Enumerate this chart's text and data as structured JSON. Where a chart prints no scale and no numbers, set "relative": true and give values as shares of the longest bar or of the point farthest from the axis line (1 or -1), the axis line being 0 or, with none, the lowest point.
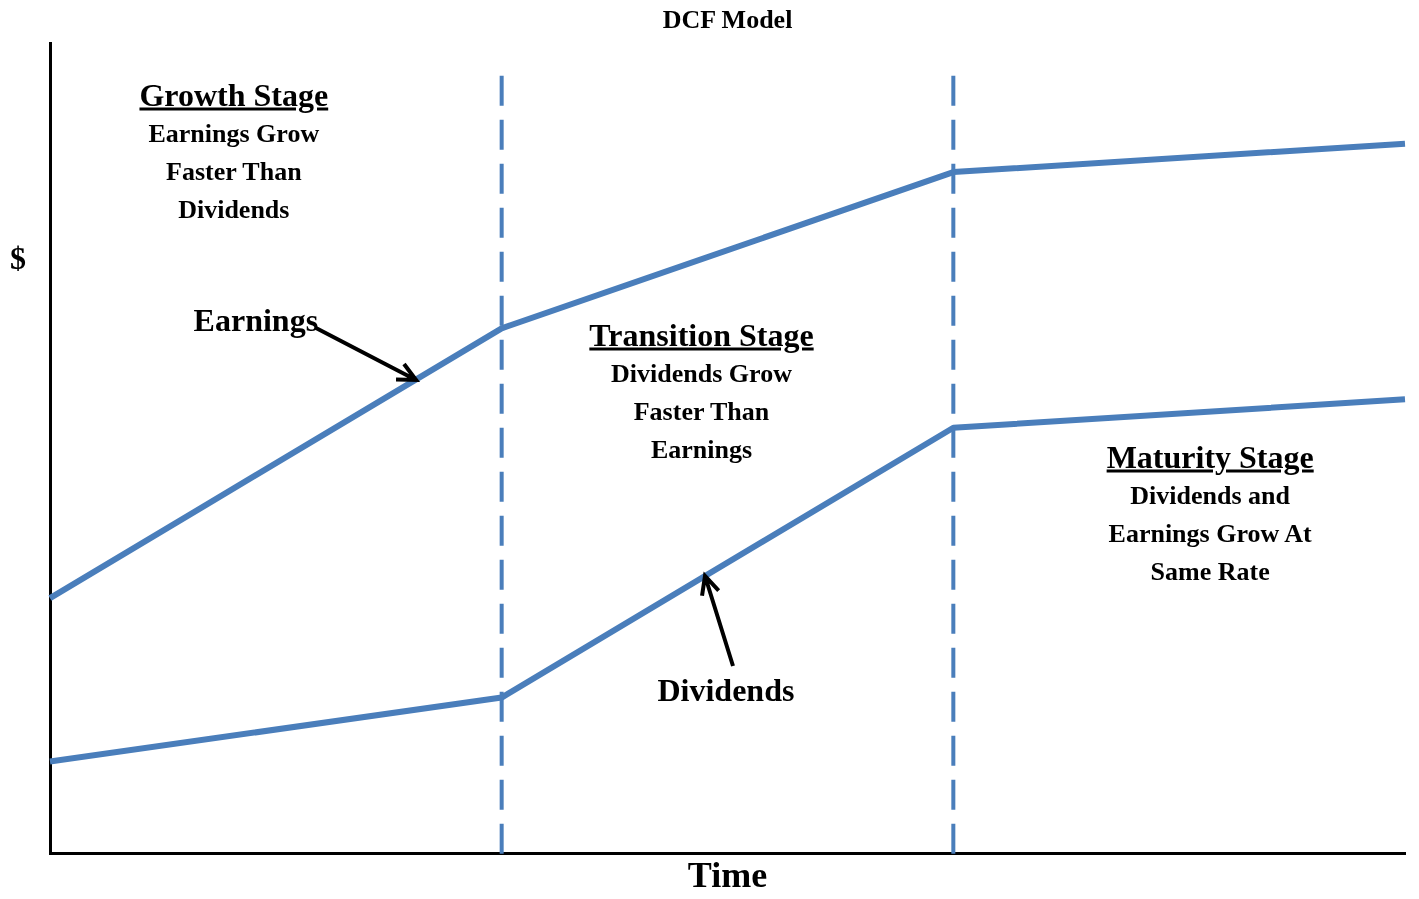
{
  "chart_data": {
    "type": "line",
    "title": "DCF Model",
    "xlabel": "Time",
    "ylabel": "$",
    "relative": true,
    "categories": [
      null,
      null,
      null,
      null
    ],
    "marker": "none",
    "line_style": "solid",
    "series": [
      {
        "name": "Earnings",
        "color": "#4a7ebb",
        "values": [
          0.36,
          0.74,
          0.96,
          1
        ]
      },
      {
        "name": "Dividends",
        "color": "#4a7ebb",
        "values": [
          0.13,
          0.22,
          0.6,
          0.64
        ]
      }
    ],
    "annotations": [
      "Growth Stage",
      "Earnings Grow Faster Than Dividends",
      "Transition Stage",
      "Dividends Grow Faster Than Earnings",
      "Maturity Stage",
      "Dividends and Earnings Grow At Same Rate"
    ]
  }
}
